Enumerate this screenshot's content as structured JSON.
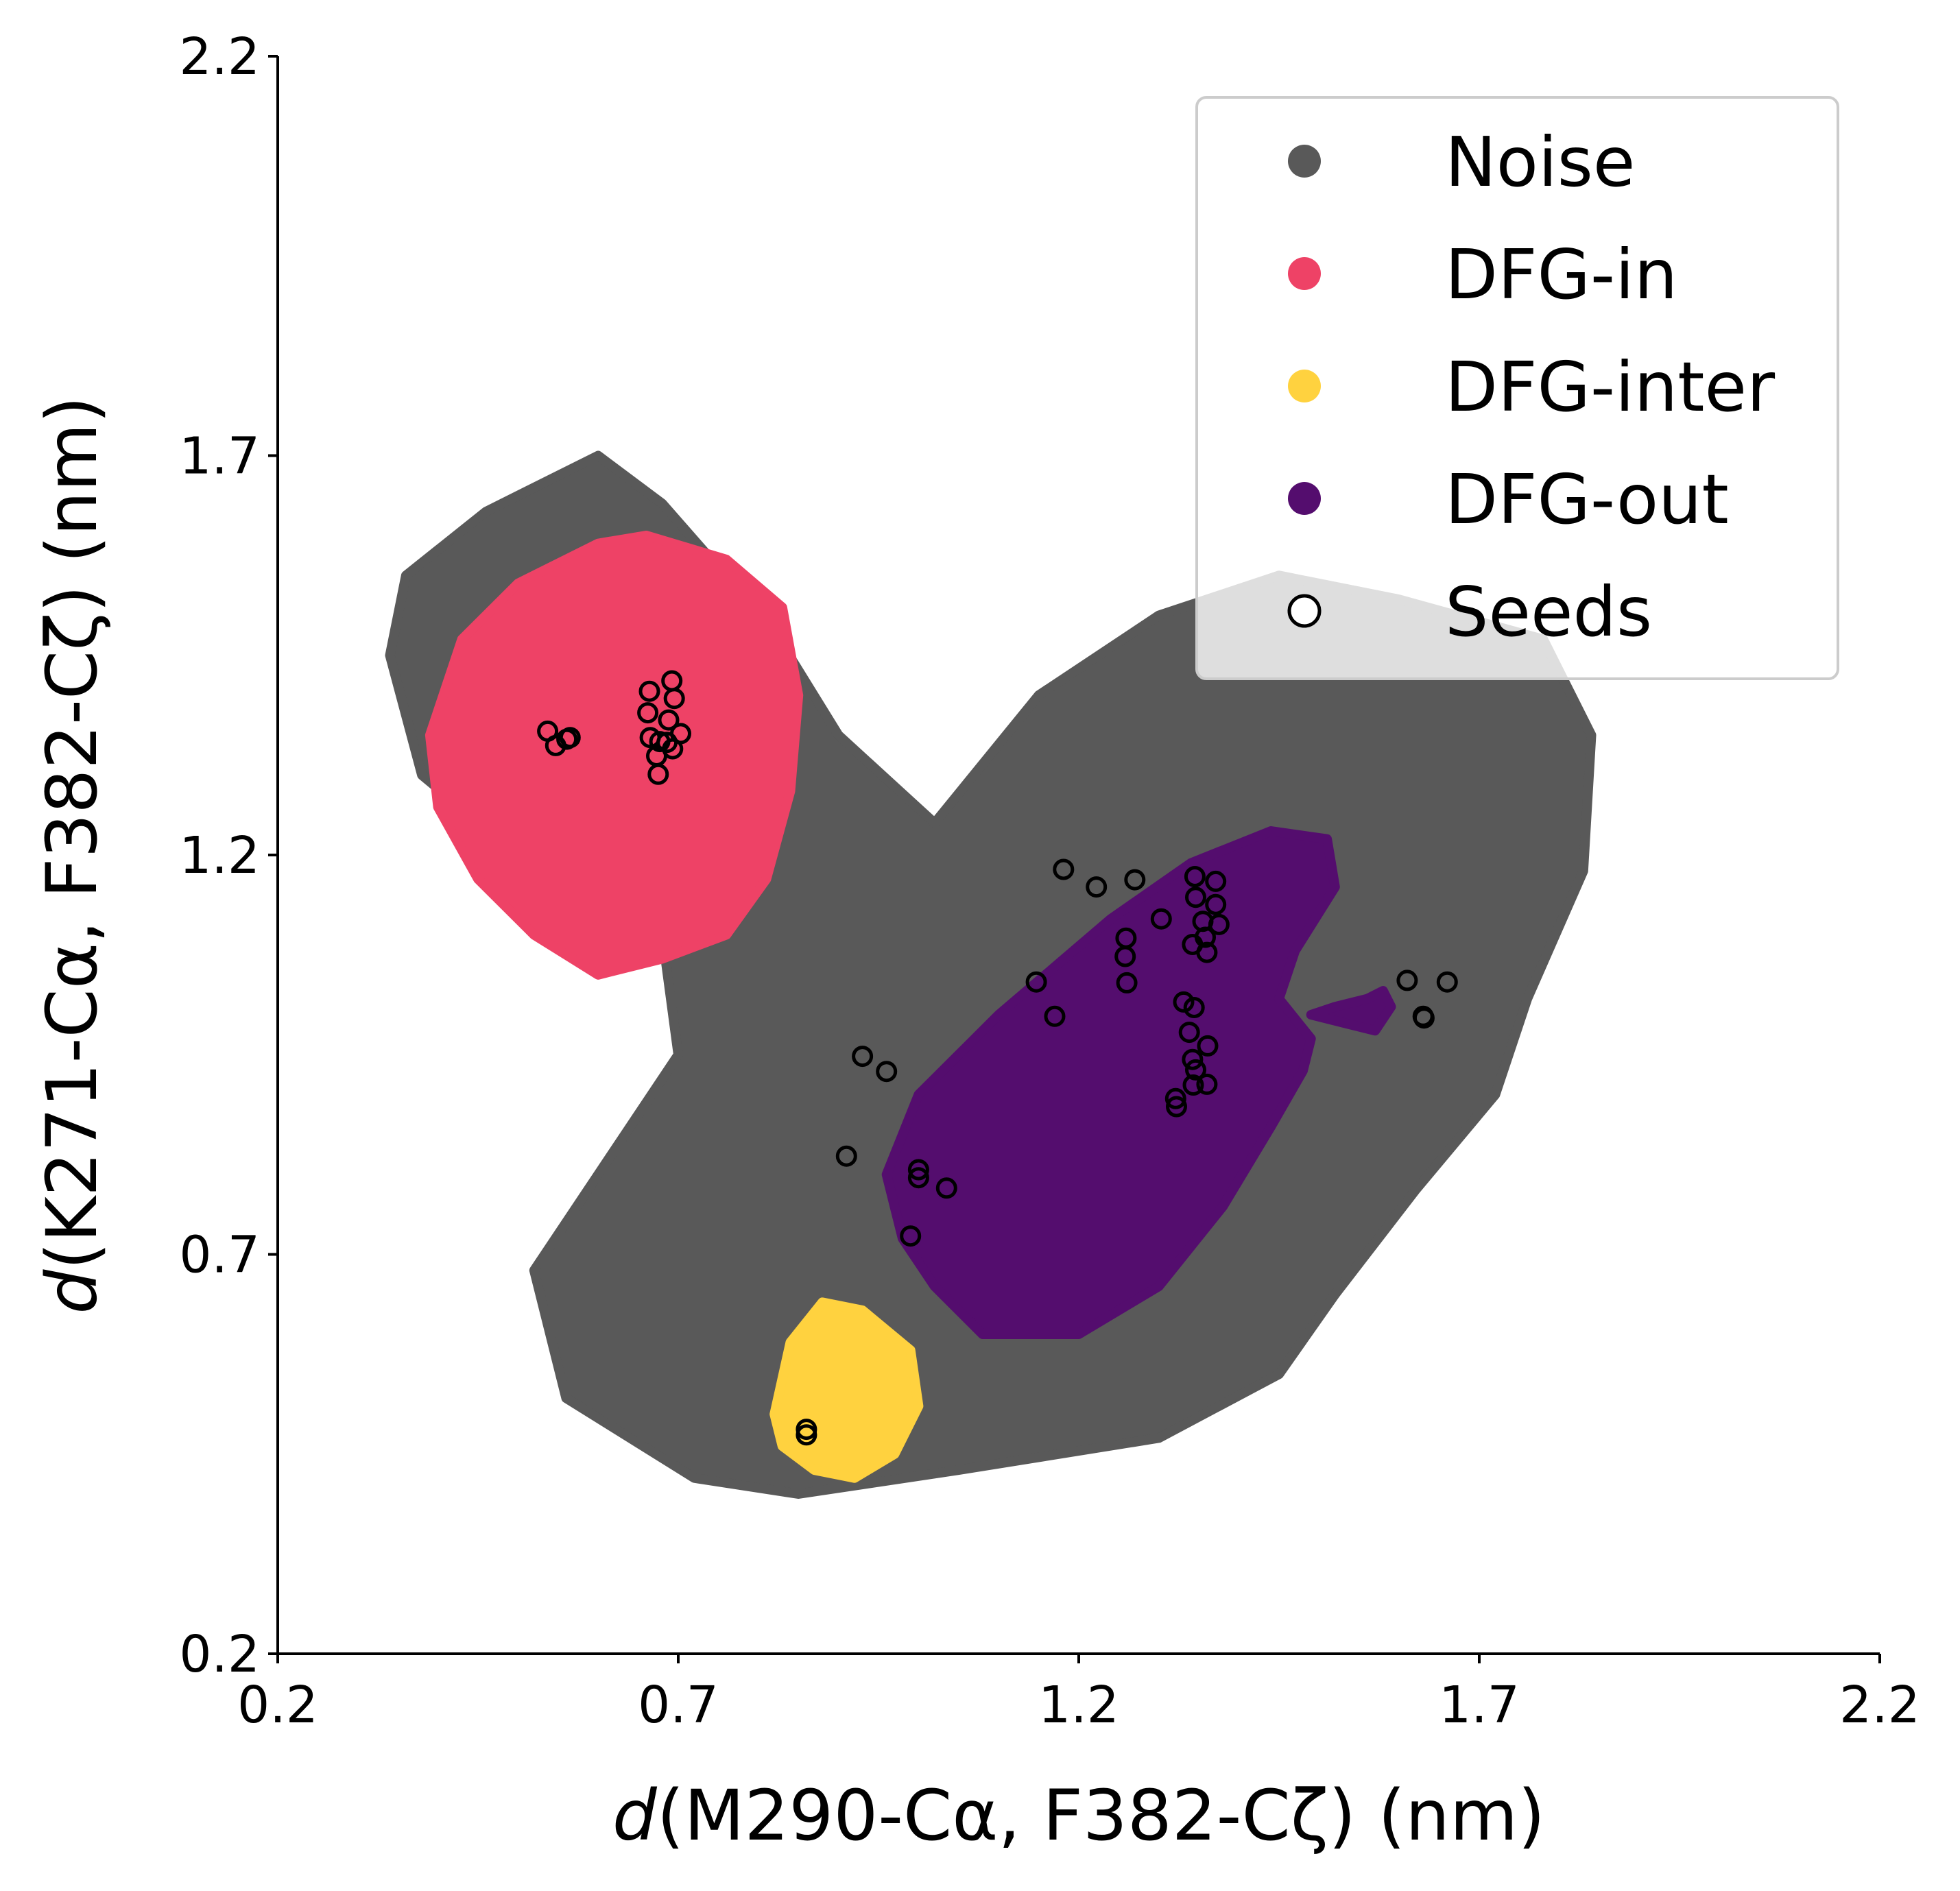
{
  "chart_data": {
    "type": "scatter",
    "xlabel": {
      "italic": "d",
      "rest": "(M290-Cα, F382-Cζ) (nm)"
    },
    "ylabel": {
      "italic": "d",
      "rest": "(K271-Cα, F382-Cζ) (nm)"
    },
    "xlim": [
      0.2,
      2.2
    ],
    "ylim": [
      0.2,
      2.2
    ],
    "xticks": [
      "0.2",
      "0.7",
      "1.2",
      "1.7",
      "2.2"
    ],
    "yticks": [
      "0.2",
      "0.7",
      "1.2",
      "1.7",
      "2.2"
    ],
    "grid": false,
    "legend_position": "top-right",
    "legend": [
      {
        "name": "Noise",
        "color": "#595959",
        "marker": "filled-circle"
      },
      {
        "name": "DFG-in",
        "color": "#EE4266",
        "marker": "filled-circle"
      },
      {
        "name": "DFG-inter",
        "color": "#FFD23F",
        "marker": "filled-circle"
      },
      {
        "name": "DFG-out",
        "color": "#540D6E",
        "marker": "filled-circle"
      },
      {
        "name": "Seeds",
        "color": "#000000",
        "marker": "open-circle"
      }
    ],
    "regions": [
      {
        "name": "Noise",
        "color": "#595959",
        "polygon": [
          [
            0.36,
            1.55
          ],
          [
            0.46,
            1.63
          ],
          [
            0.6,
            1.7
          ],
          [
            0.68,
            1.64
          ],
          [
            0.82,
            1.48
          ],
          [
            0.9,
            1.35
          ],
          [
            1.02,
            1.24
          ],
          [
            1.15,
            1.4
          ],
          [
            1.3,
            1.5
          ],
          [
            1.45,
            1.55
          ],
          [
            1.6,
            1.52
          ],
          [
            1.78,
            1.47
          ],
          [
            1.84,
            1.35
          ],
          [
            1.83,
            1.18
          ],
          [
            1.76,
            1.02
          ],
          [
            1.72,
            0.9
          ],
          [
            1.62,
            0.78
          ],
          [
            1.52,
            0.65
          ],
          [
            1.45,
            0.55
          ],
          [
            1.3,
            0.47
          ],
          [
            1.05,
            0.43
          ],
          [
            0.85,
            0.4
          ],
          [
            0.72,
            0.42
          ],
          [
            0.56,
            0.52
          ],
          [
            0.52,
            0.68
          ],
          [
            0.6,
            0.8
          ],
          [
            0.7,
            0.95
          ],
          [
            0.68,
            1.1
          ],
          [
            0.5,
            1.2
          ],
          [
            0.38,
            1.3
          ],
          [
            0.34,
            1.45
          ]
        ]
      },
      {
        "name": "DFG-in",
        "color": "#EE4266",
        "polygon": [
          [
            0.39,
            1.35
          ],
          [
            0.43,
            1.47
          ],
          [
            0.5,
            1.54
          ],
          [
            0.6,
            1.59
          ],
          [
            0.66,
            1.6
          ],
          [
            0.76,
            1.57
          ],
          [
            0.83,
            1.51
          ],
          [
            0.85,
            1.4
          ],
          [
            0.84,
            1.28
          ],
          [
            0.81,
            1.17
          ],
          [
            0.76,
            1.1
          ],
          [
            0.68,
            1.07
          ],
          [
            0.6,
            1.05
          ],
          [
            0.52,
            1.1
          ],
          [
            0.45,
            1.17
          ],
          [
            0.4,
            1.26
          ]
        ]
      },
      {
        "name": "DFG-inter",
        "color": "#FFD23F",
        "polygon": [
          [
            0.82,
            0.5
          ],
          [
            0.84,
            0.59
          ],
          [
            0.88,
            0.64
          ],
          [
            0.93,
            0.63
          ],
          [
            0.99,
            0.58
          ],
          [
            1.0,
            0.51
          ],
          [
            0.97,
            0.45
          ],
          [
            0.92,
            0.42
          ],
          [
            0.87,
            0.43
          ],
          [
            0.83,
            0.46
          ]
        ]
      },
      {
        "name": "DFG-out",
        "color": "#540D6E",
        "polygon": [
          [
            0.96,
            0.8
          ],
          [
            1.0,
            0.9
          ],
          [
            1.1,
            1.0
          ],
          [
            1.24,
            1.12
          ],
          [
            1.34,
            1.19
          ],
          [
            1.44,
            1.23
          ],
          [
            1.51,
            1.22
          ],
          [
            1.52,
            1.16
          ],
          [
            1.47,
            1.08
          ],
          [
            1.45,
            1.02
          ],
          [
            1.49,
            0.97
          ],
          [
            1.48,
            0.93
          ],
          [
            1.44,
            0.86
          ],
          [
            1.38,
            0.76
          ],
          [
            1.3,
            0.66
          ],
          [
            1.2,
            0.6
          ],
          [
            1.08,
            0.6
          ],
          [
            1.02,
            0.66
          ],
          [
            0.98,
            0.72
          ]
        ]
      },
      {
        "name": "DFG-out",
        "color": "#540D6E",
        "polygon": [
          [
            1.49,
            1.0
          ],
          [
            1.52,
            1.01
          ],
          [
            1.56,
            1.02
          ],
          [
            1.58,
            1.03
          ],
          [
            1.59,
            1.01
          ],
          [
            1.57,
            0.98
          ],
          [
            1.53,
            0.99
          ]
        ]
      }
    ],
    "seeds": [
      [
        0.537,
        1.355
      ],
      [
        0.547,
        1.337
      ],
      [
        0.561,
        1.345
      ],
      [
        0.565,
        1.347
      ],
      [
        0.664,
        1.405
      ],
      [
        0.662,
        1.378
      ],
      [
        0.665,
        1.347
      ],
      [
        0.677,
        1.342
      ],
      [
        0.686,
        1.341
      ],
      [
        0.693,
        1.333
      ],
      [
        0.703,
        1.352
      ],
      [
        0.688,
        1.369
      ],
      [
        0.695,
        1.396
      ],
      [
        0.692,
        1.418
      ],
      [
        0.673,
        1.324
      ],
      [
        0.675,
        1.301
      ],
      [
        1.181,
        1.182
      ],
      [
        1.222,
        1.16
      ],
      [
        1.27,
        1.169
      ],
      [
        1.345,
        1.173
      ],
      [
        1.371,
        1.167
      ],
      [
        1.346,
        1.147
      ],
      [
        1.371,
        1.138
      ],
      [
        1.303,
        1.12
      ],
      [
        1.355,
        1.117
      ],
      [
        1.375,
        1.113
      ],
      [
        1.358,
        1.097
      ],
      [
        1.342,
        1.088
      ],
      [
        1.36,
        1.078
      ],
      [
        1.259,
        1.096
      ],
      [
        1.258,
        1.073
      ],
      [
        1.26,
        1.04
      ],
      [
        1.147,
        1.041
      ],
      [
        1.17,
        0.998
      ],
      [
        1.331,
        1.016
      ],
      [
        1.344,
        1.009
      ],
      [
        1.338,
        0.978
      ],
      [
        1.342,
        0.944
      ],
      [
        1.361,
        0.961
      ],
      [
        1.346,
        0.931
      ],
      [
        1.343,
        0.912
      ],
      [
        1.36,
        0.913
      ],
      [
        1.321,
        0.895
      ],
      [
        1.322,
        0.885
      ],
      [
        0.93,
        0.948
      ],
      [
        0.96,
        0.929
      ],
      [
        0.91,
        0.823
      ],
      [
        1.0,
        0.806
      ],
      [
        1.0,
        0.796
      ],
      [
        1.035,
        0.783
      ],
      [
        0.99,
        0.723
      ],
      [
        1.61,
        1.043
      ],
      [
        1.66,
        1.041
      ],
      [
        1.63,
        0.998
      ],
      [
        1.631,
        0.996
      ],
      [
        0.86,
        0.481
      ],
      [
        0.86,
        0.474
      ]
    ]
  }
}
